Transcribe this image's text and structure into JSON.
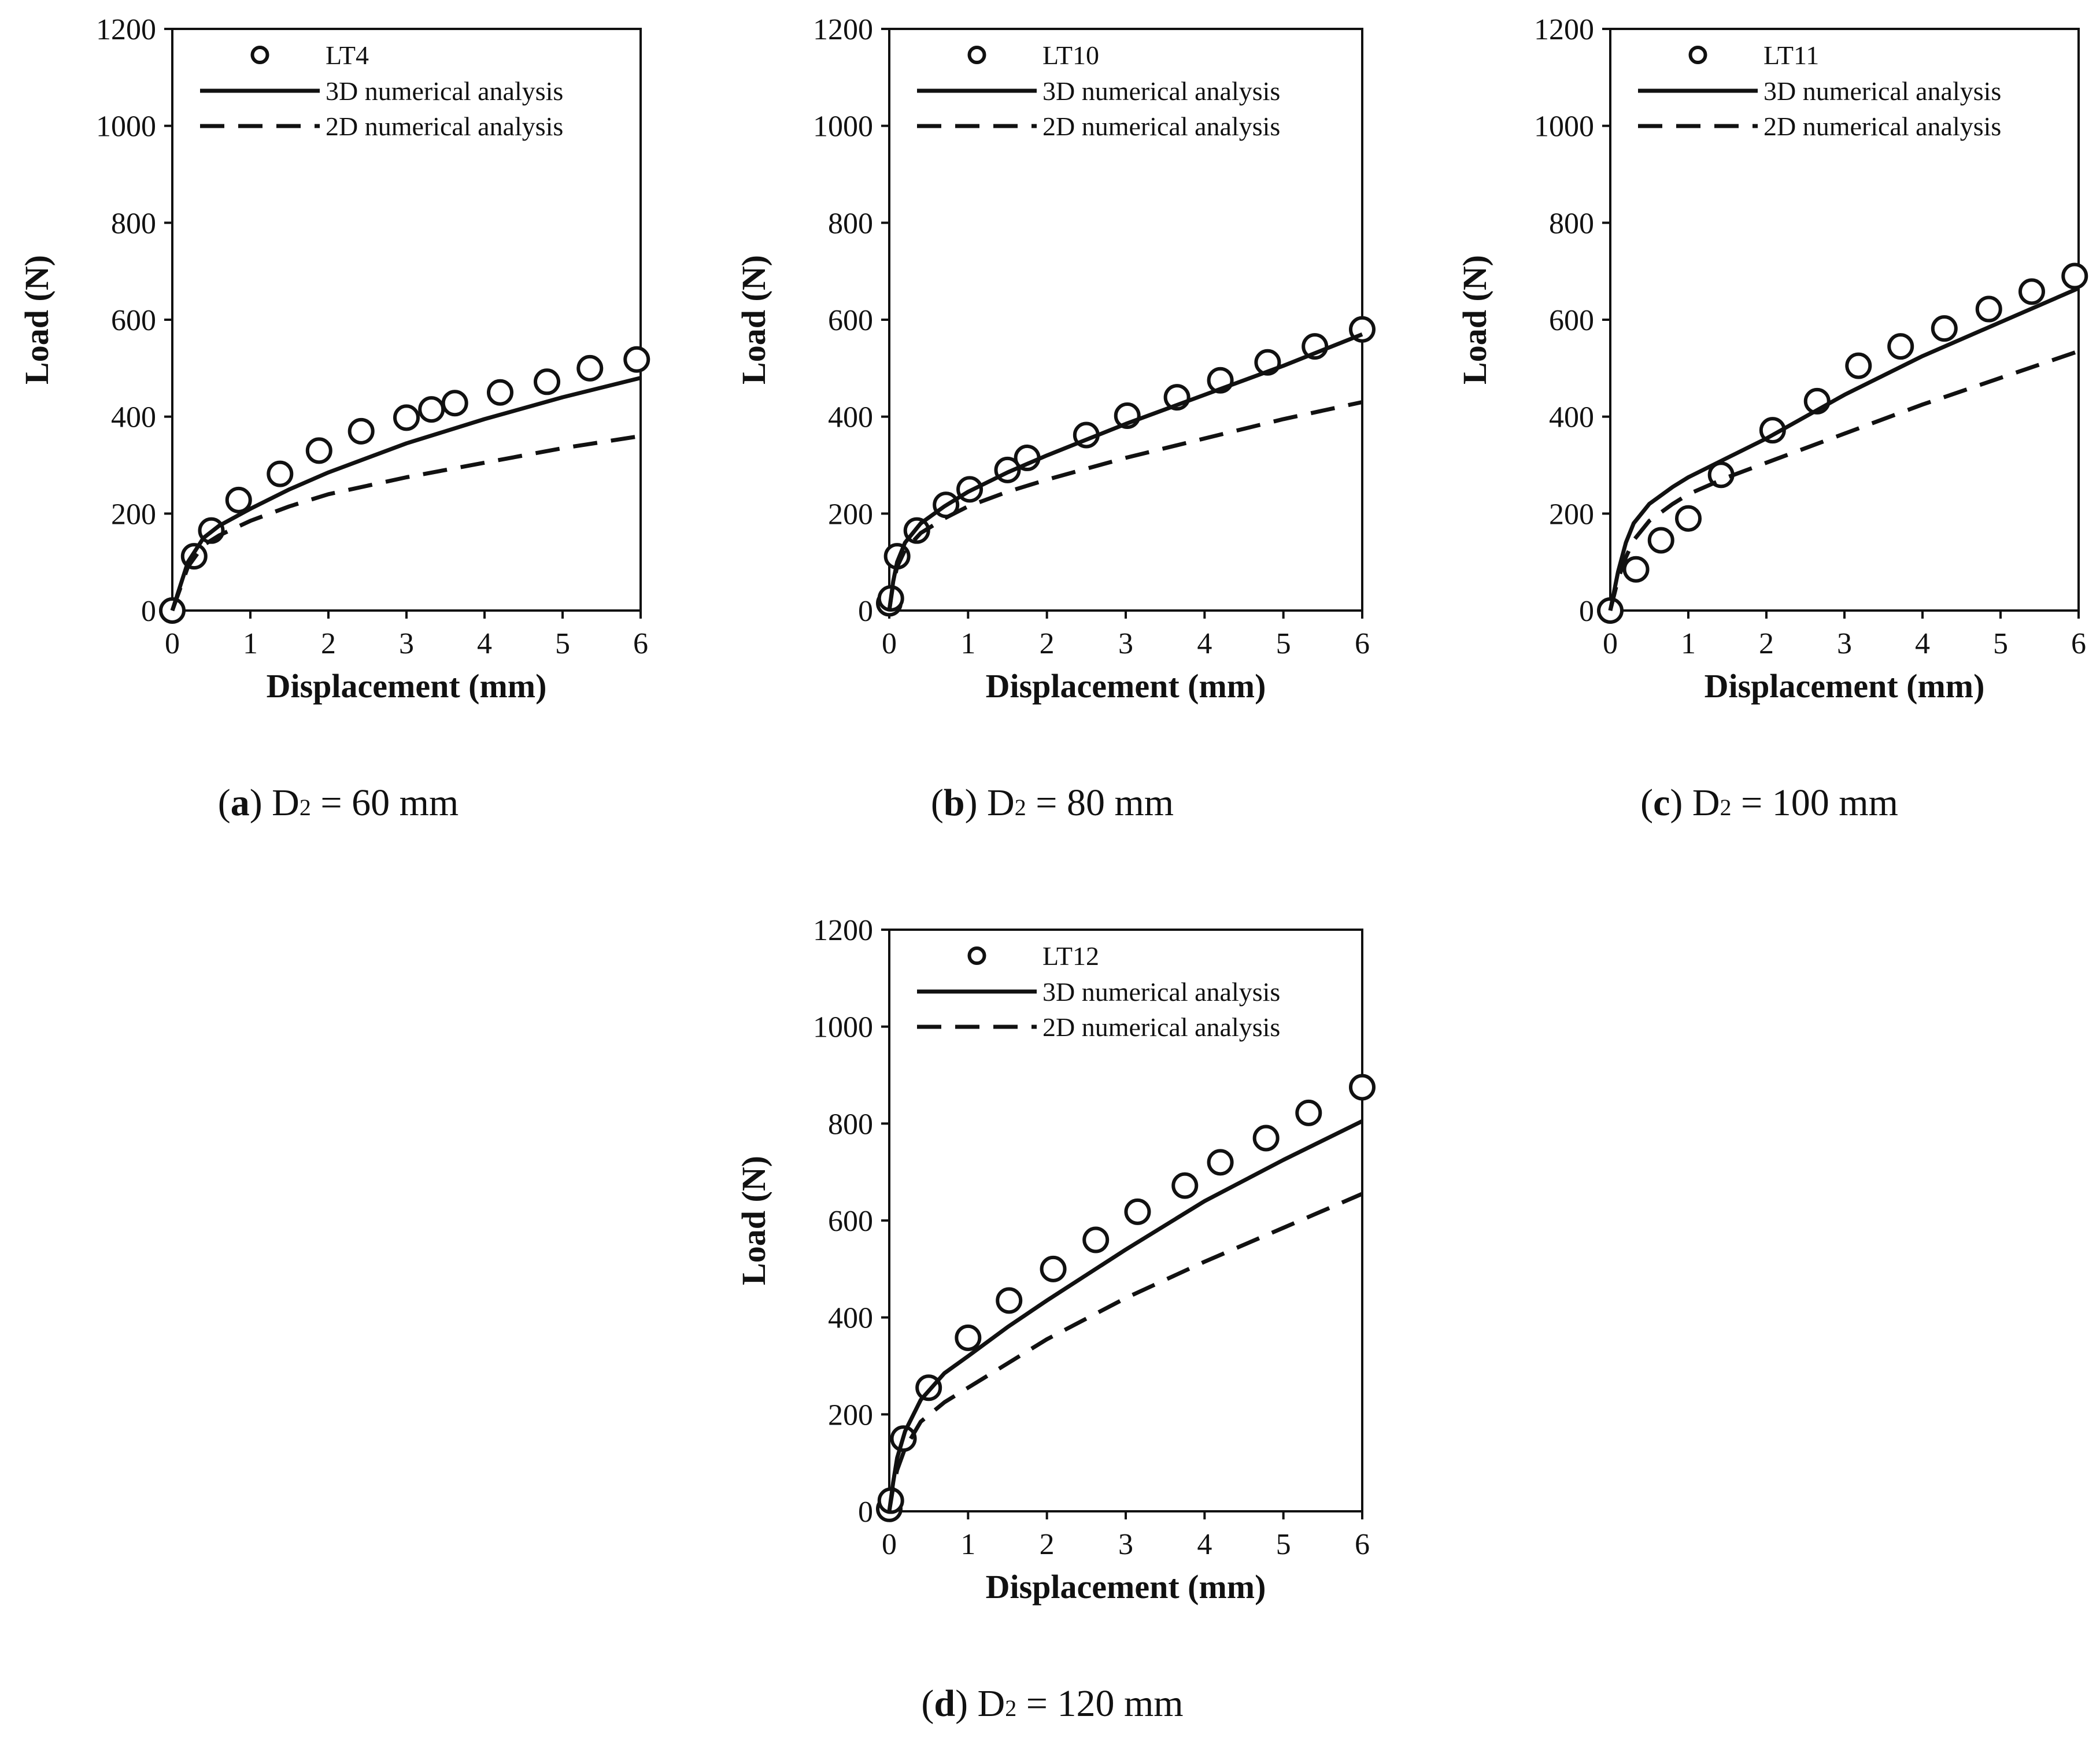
{
  "chart_data": [
    {
      "type": "line",
      "panel": "a",
      "caption": {
        "letter": "a",
        "d_base": "D",
        "d_sub": "2",
        "value_text": "= 60 mm"
      },
      "xlabel": "Displacement (mm)",
      "ylabel": "Load (N)",
      "xlim": [
        0,
        6
      ],
      "ylim": [
        0,
        1200
      ],
      "xticks": [
        0,
        1,
        2,
        3,
        4,
        5,
        6
      ],
      "yticks": [
        0,
        200,
        400,
        600,
        800,
        1000,
        1200
      ],
      "legend_position": "top",
      "series": [
        {
          "name": "LT4",
          "kind": "scatter-circle",
          "x": [
            0,
            0.28,
            0.5,
            0.85,
            1.38,
            1.88,
            2.42,
            3.0,
            3.32,
            3.62,
            4.2,
            4.8,
            5.35,
            5.95
          ],
          "y": [
            0,
            112,
            165,
            228,
            282,
            330,
            370,
            398,
            415,
            428,
            450,
            472,
            500,
            518
          ]
        },
        {
          "name": "3D numerical analysis",
          "kind": "solid",
          "x": [
            0,
            0.1,
            0.2,
            0.4,
            0.6,
            1,
            1.5,
            2,
            3,
            4,
            5,
            6
          ],
          "y": [
            0,
            50,
            100,
            150,
            175,
            210,
            250,
            285,
            345,
            395,
            440,
            480
          ]
        },
        {
          "name": "2D numerical analysis",
          "kind": "dashed",
          "x": [
            0,
            0.1,
            0.2,
            0.4,
            0.6,
            1,
            1.5,
            2,
            3,
            4,
            5,
            6
          ],
          "y": [
            0,
            45,
            90,
            135,
            155,
            185,
            215,
            240,
            275,
            305,
            335,
            360
          ]
        }
      ]
    },
    {
      "type": "line",
      "panel": "b",
      "caption": {
        "letter": "b",
        "d_base": "D",
        "d_sub": "2",
        "value_text": "= 80 mm"
      },
      "xlabel": "Displacement (mm)",
      "ylabel": "Load (N)",
      "xlim": [
        0,
        6
      ],
      "ylim": [
        0,
        1200
      ],
      "xticks": [
        0,
        1,
        2,
        3,
        4,
        5,
        6
      ],
      "yticks": [
        0,
        200,
        400,
        600,
        800,
        1000,
        1200
      ],
      "legend_position": "top",
      "series": [
        {
          "name": "LT10",
          "kind": "scatter-circle",
          "x": [
            0,
            0.02,
            0.1,
            0.35,
            0.72,
            1.02,
            1.5,
            1.75,
            2.5,
            3.02,
            3.65,
            4.2,
            4.8,
            5.4,
            6.0
          ],
          "y": [
            15,
            25,
            112,
            165,
            218,
            250,
            290,
            315,
            362,
            402,
            440,
            475,
            512,
            545,
            580
          ]
        },
        {
          "name": "3D numerical analysis",
          "kind": "solid",
          "x": [
            0,
            0.05,
            0.1,
            0.2,
            0.4,
            0.7,
            1,
            1.5,
            2,
            3,
            4,
            5,
            6
          ],
          "y": [
            0,
            60,
            100,
            140,
            180,
            215,
            245,
            285,
            320,
            385,
            445,
            505,
            570
          ]
        },
        {
          "name": "2D numerical analysis",
          "kind": "dashed",
          "x": [
            0,
            0.05,
            0.1,
            0.2,
            0.4,
            0.7,
            1,
            1.5,
            2,
            3,
            4,
            5,
            6
          ],
          "y": [
            0,
            55,
            90,
            125,
            160,
            190,
            215,
            245,
            270,
            315,
            355,
            395,
            430
          ]
        }
      ]
    },
    {
      "type": "line",
      "panel": "c",
      "caption": {
        "letter": "c",
        "d_base": "D",
        "d_sub": "2",
        "value_text": "= 100 mm"
      },
      "xlabel": "Displacement (mm)",
      "ylabel": "Load (N)",
      "xlim": [
        0,
        6
      ],
      "ylim": [
        0,
        1200
      ],
      "xticks": [
        0,
        1,
        2,
        3,
        4,
        5,
        6
      ],
      "yticks": [
        0,
        200,
        400,
        600,
        800,
        1000,
        1200
      ],
      "legend_position": "top",
      "series": [
        {
          "name": "LT11",
          "kind": "scatter-circle",
          "x": [
            0,
            0.33,
            0.65,
            1.0,
            1.42,
            2.08,
            2.65,
            3.18,
            3.72,
            4.28,
            4.85,
            5.4,
            5.95
          ],
          "y": [
            0,
            85,
            145,
            190,
            280,
            372,
            432,
            505,
            545,
            582,
            622,
            658,
            690
          ]
        },
        {
          "name": "3D numerical analysis",
          "kind": "solid",
          "x": [
            0,
            0.1,
            0.2,
            0.3,
            0.5,
            0.8,
            1,
            1.5,
            2,
            3,
            4,
            5,
            6
          ],
          "y": [
            0,
            80,
            140,
            180,
            220,
            255,
            275,
            315,
            355,
            445,
            525,
            595,
            665
          ]
        },
        {
          "name": "2D numerical analysis",
          "kind": "dashed",
          "x": [
            0,
            0.1,
            0.2,
            0.3,
            0.5,
            0.8,
            1,
            1.5,
            2,
            3,
            4,
            5,
            6
          ],
          "y": [
            0,
            65,
            110,
            145,
            185,
            220,
            240,
            275,
            305,
            365,
            425,
            480,
            535
          ]
        }
      ]
    },
    {
      "type": "line",
      "panel": "d",
      "caption": {
        "letter": "d",
        "d_base": "D",
        "d_sub": "2",
        "value_text": "= 120 mm"
      },
      "xlabel": "Displacement (mm)",
      "ylabel": "Load (N)",
      "xlim": [
        0,
        6
      ],
      "ylim": [
        0,
        1200
      ],
      "xticks": [
        0,
        1,
        2,
        3,
        4,
        5,
        6
      ],
      "yticks": [
        0,
        200,
        400,
        600,
        800,
        1000,
        1200
      ],
      "legend_position": "top",
      "series": [
        {
          "name": "LT12",
          "kind": "scatter-circle",
          "x": [
            0,
            0.02,
            0.18,
            0.5,
            1.0,
            1.52,
            2.08,
            2.62,
            3.15,
            3.75,
            4.2,
            4.78,
            5.32,
            6.0
          ],
          "y": [
            5,
            22,
            150,
            255,
            358,
            435,
            500,
            560,
            618,
            672,
            720,
            770,
            822,
            875
          ]
        },
        {
          "name": "3D numerical analysis",
          "kind": "solid",
          "x": [
            0,
            0.05,
            0.1,
            0.2,
            0.4,
            0.7,
            1,
            1.5,
            2,
            3,
            4,
            5,
            6
          ],
          "y": [
            0,
            60,
            110,
            165,
            230,
            285,
            320,
            380,
            435,
            540,
            640,
            725,
            805
          ]
        },
        {
          "name": "2D numerical analysis",
          "kind": "dashed",
          "x": [
            0,
            0.05,
            0.1,
            0.2,
            0.4,
            0.7,
            1,
            1.5,
            2,
            3,
            4,
            5,
            6
          ],
          "y": [
            0,
            50,
            85,
            130,
            185,
            225,
            255,
            305,
            355,
            440,
            515,
            585,
            655
          ]
        }
      ]
    }
  ]
}
